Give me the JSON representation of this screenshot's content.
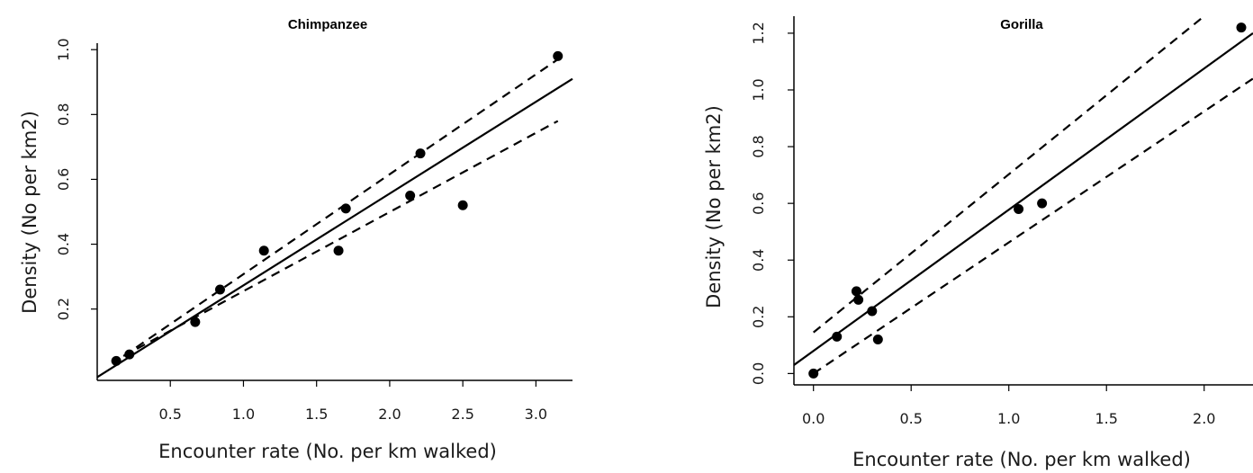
{
  "chart_data": [
    {
      "type": "scatter",
      "title": "Chimpanzee",
      "xlabel": "Encounter rate (No. per km walked)",
      "ylabel": "Density (No per km2)",
      "xticks": [
        "0.5",
        "1.0",
        "1.5",
        "2.0",
        "2.5",
        "3.0"
      ],
      "yticks": [
        "0.2",
        "0.4",
        "0.6",
        "0.8",
        "1.0"
      ],
      "xlim": [
        0.0,
        3.25
      ],
      "ylim": [
        -0.02,
        1.02
      ],
      "points": [
        {
          "x": 0.13,
          "y": 0.04
        },
        {
          "x": 0.22,
          "y": 0.06
        },
        {
          "x": 0.67,
          "y": 0.16
        },
        {
          "x": 0.84,
          "y": 0.26
        },
        {
          "x": 1.14,
          "y": 0.38
        },
        {
          "x": 1.65,
          "y": 0.38
        },
        {
          "x": 1.7,
          "y": 0.51
        },
        {
          "x": 2.14,
          "y": 0.55
        },
        {
          "x": 2.21,
          "y": 0.68
        },
        {
          "x": 2.5,
          "y": 0.52
        },
        {
          "x": 3.15,
          "y": 0.98
        }
      ],
      "fit_line": [
        {
          "x": 0.0,
          "y": -0.01
        },
        {
          "x": 3.25,
          "y": 0.91
        }
      ],
      "upper_band": [
        {
          "x": 0.18,
          "y": 0.055
        },
        {
          "x": 3.15,
          "y": 0.97
        }
      ],
      "lower_band": [
        {
          "x": 0.18,
          "y": 0.055
        },
        {
          "x": 3.15,
          "y": 0.78
        }
      ],
      "grid": false
    },
    {
      "type": "scatter",
      "title": "Gorilla",
      "xlabel": "Encounter rate (No. per km walked)",
      "ylabel": "Density (No per km2)",
      "xticks": [
        "0.0",
        "0.5",
        "1.0",
        "1.5",
        "2.0"
      ],
      "yticks": [
        "0.0",
        "0.2",
        "0.4",
        "0.6",
        "0.8",
        "1.0",
        "1.2"
      ],
      "xlim": [
        -0.1,
        2.25
      ],
      "ylim": [
        -0.04,
        1.26
      ],
      "points": [
        {
          "x": 0.0,
          "y": 0.0
        },
        {
          "x": 0.12,
          "y": 0.13
        },
        {
          "x": 0.22,
          "y": 0.29
        },
        {
          "x": 0.23,
          "y": 0.26
        },
        {
          "x": 0.3,
          "y": 0.22
        },
        {
          "x": 0.33,
          "y": 0.12
        },
        {
          "x": 1.05,
          "y": 0.58
        },
        {
          "x": 1.17,
          "y": 0.6
        },
        {
          "x": 2.19,
          "y": 1.22
        }
      ],
      "fit_line": [
        {
          "x": -0.1,
          "y": 0.03
        },
        {
          "x": 2.25,
          "y": 1.2
        }
      ],
      "upper_band": [
        {
          "x": 0.0,
          "y": 0.145
        },
        {
          "x": 2.0,
          "y": 1.26
        }
      ],
      "lower_band": [
        {
          "x": 0.0,
          "y": 0.0
        },
        {
          "x": 2.25,
          "y": 1.04
        }
      ],
      "grid": false
    }
  ]
}
